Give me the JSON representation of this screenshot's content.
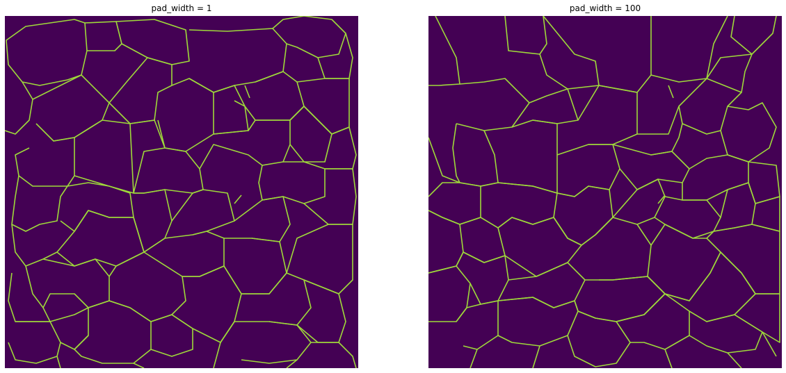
{
  "panels": [
    {
      "title": "pad_width = 1"
    },
    {
      "title": "pad_width = 100"
    }
  ],
  "colors": {
    "background": "#440154",
    "boundary": "#9fda3a",
    "page": "#ffffff"
  }
}
